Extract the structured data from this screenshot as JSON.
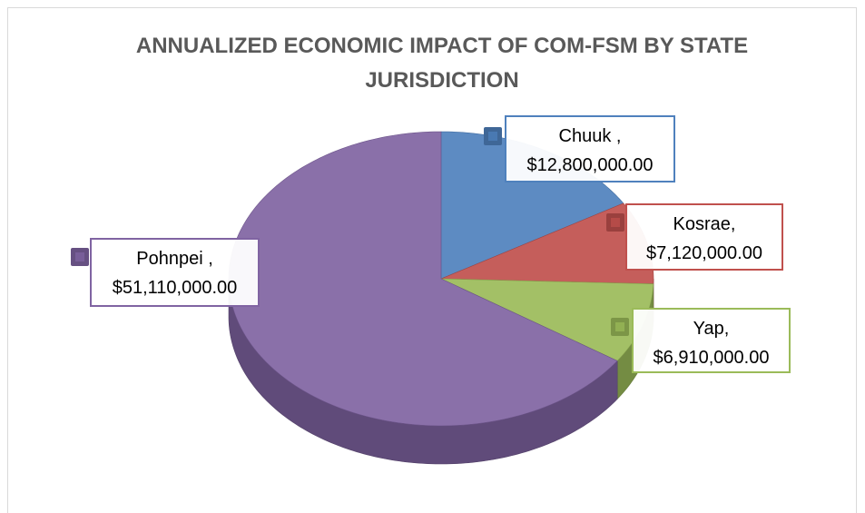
{
  "chart_data": {
    "type": "pie",
    "title": "ANNUALIZED ECONOMIC IMPACT OF COM-FSM BY STATE JURISDICTION",
    "categories": [
      "Chuuk ,",
      "Kosrae,",
      "Yap,",
      "Pohnpei ,"
    ],
    "values": [
      12800000,
      7120000,
      6910000,
      51110000
    ],
    "value_labels": [
      "$12,800,000.00",
      "$7,120,000.00",
      "$6,910,000.00",
      "$51,110,000.00"
    ],
    "colors": [
      "#4f81bd",
      "#c0504d",
      "#9bbb59",
      "#8064a2"
    ]
  }
}
